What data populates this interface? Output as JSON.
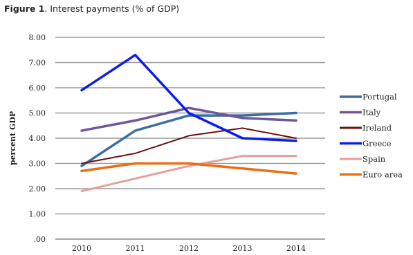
{
  "figure": {
    "label": "Figure 1",
    "title": ". Interest payments (% of GDP)"
  },
  "chart_data": {
    "type": "line",
    "ylabel": "percent GDP",
    "xlabel": "",
    "categories": [
      "2010",
      "2011",
      "2012",
      "2013",
      "2014"
    ],
    "ylim": [
      0,
      8
    ],
    "yticks": [
      ".00",
      "1.00",
      "2.00",
      "3.00",
      "4.00",
      "5.00",
      "6.00",
      "7.00",
      "8.00"
    ],
    "grid": "horizontal",
    "legend_position": "right",
    "series": [
      {
        "name": "Portugal",
        "color": "#3a6ea5",
        "width": 3.5,
        "values": [
          2.9,
          4.3,
          4.9,
          4.9,
          5.0
        ]
      },
      {
        "name": "Italy",
        "color": "#6f559a",
        "width": 3.5,
        "values": [
          4.3,
          4.7,
          5.2,
          4.8,
          4.7
        ]
      },
      {
        "name": "Ireland",
        "color": "#6b1210",
        "width": 2,
        "values": [
          3.0,
          3.4,
          4.1,
          4.4,
          4.0
        ]
      },
      {
        "name": "Greece",
        "color": "#0b1cf0",
        "width": 3.5,
        "values": [
          5.9,
          7.3,
          5.0,
          4.0,
          3.9
        ]
      },
      {
        "name": "Spain",
        "color": "#e59f9d",
        "width": 3,
        "values": [
          1.9,
          2.4,
          2.9,
          3.3,
          3.3
        ]
      },
      {
        "name": "Euro area",
        "color": "#ec6c12",
        "width": 3.5,
        "values": [
          2.7,
          3.0,
          3.0,
          2.8,
          2.6
        ]
      }
    ]
  }
}
